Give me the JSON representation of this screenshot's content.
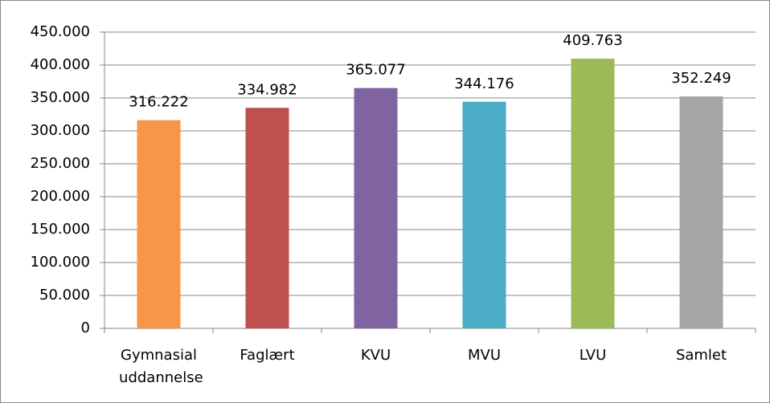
{
  "chart_data": {
    "type": "bar",
    "categories": [
      "Gymnasial uddannelse",
      "Faglært",
      "KVU",
      "MVU",
      "LVU",
      "Samlet"
    ],
    "values": [
      316222,
      334982,
      365077,
      344176,
      409763,
      352249
    ],
    "value_labels": [
      "316.222",
      "334.982",
      "365.077",
      "344.176",
      "409.763",
      "352.249"
    ],
    "colors": [
      "#f79646",
      "#c0504d",
      "#8064a2",
      "#4bacc6",
      "#9bbb59",
      "#a5a5a5"
    ],
    "ylim": [
      0,
      450000
    ],
    "yticks": [
      0,
      {
        "value": 50000,
        "label": "50.000"
      },
      {
        "value": 100000,
        "label": "100.000"
      },
      {
        "value": 150000,
        "label": "150.000"
      },
      {
        "value": 200000,
        "label": "200.000"
      },
      {
        "value": 250000,
        "label": "250.000"
      },
      {
        "value": 300000,
        "label": "300.000"
      },
      {
        "value": 350000,
        "label": "350.000"
      },
      {
        "value": 400000,
        "label": "400.000"
      },
      {
        "value": 450000,
        "label": "450.000"
      }
    ],
    "grid": true
  }
}
